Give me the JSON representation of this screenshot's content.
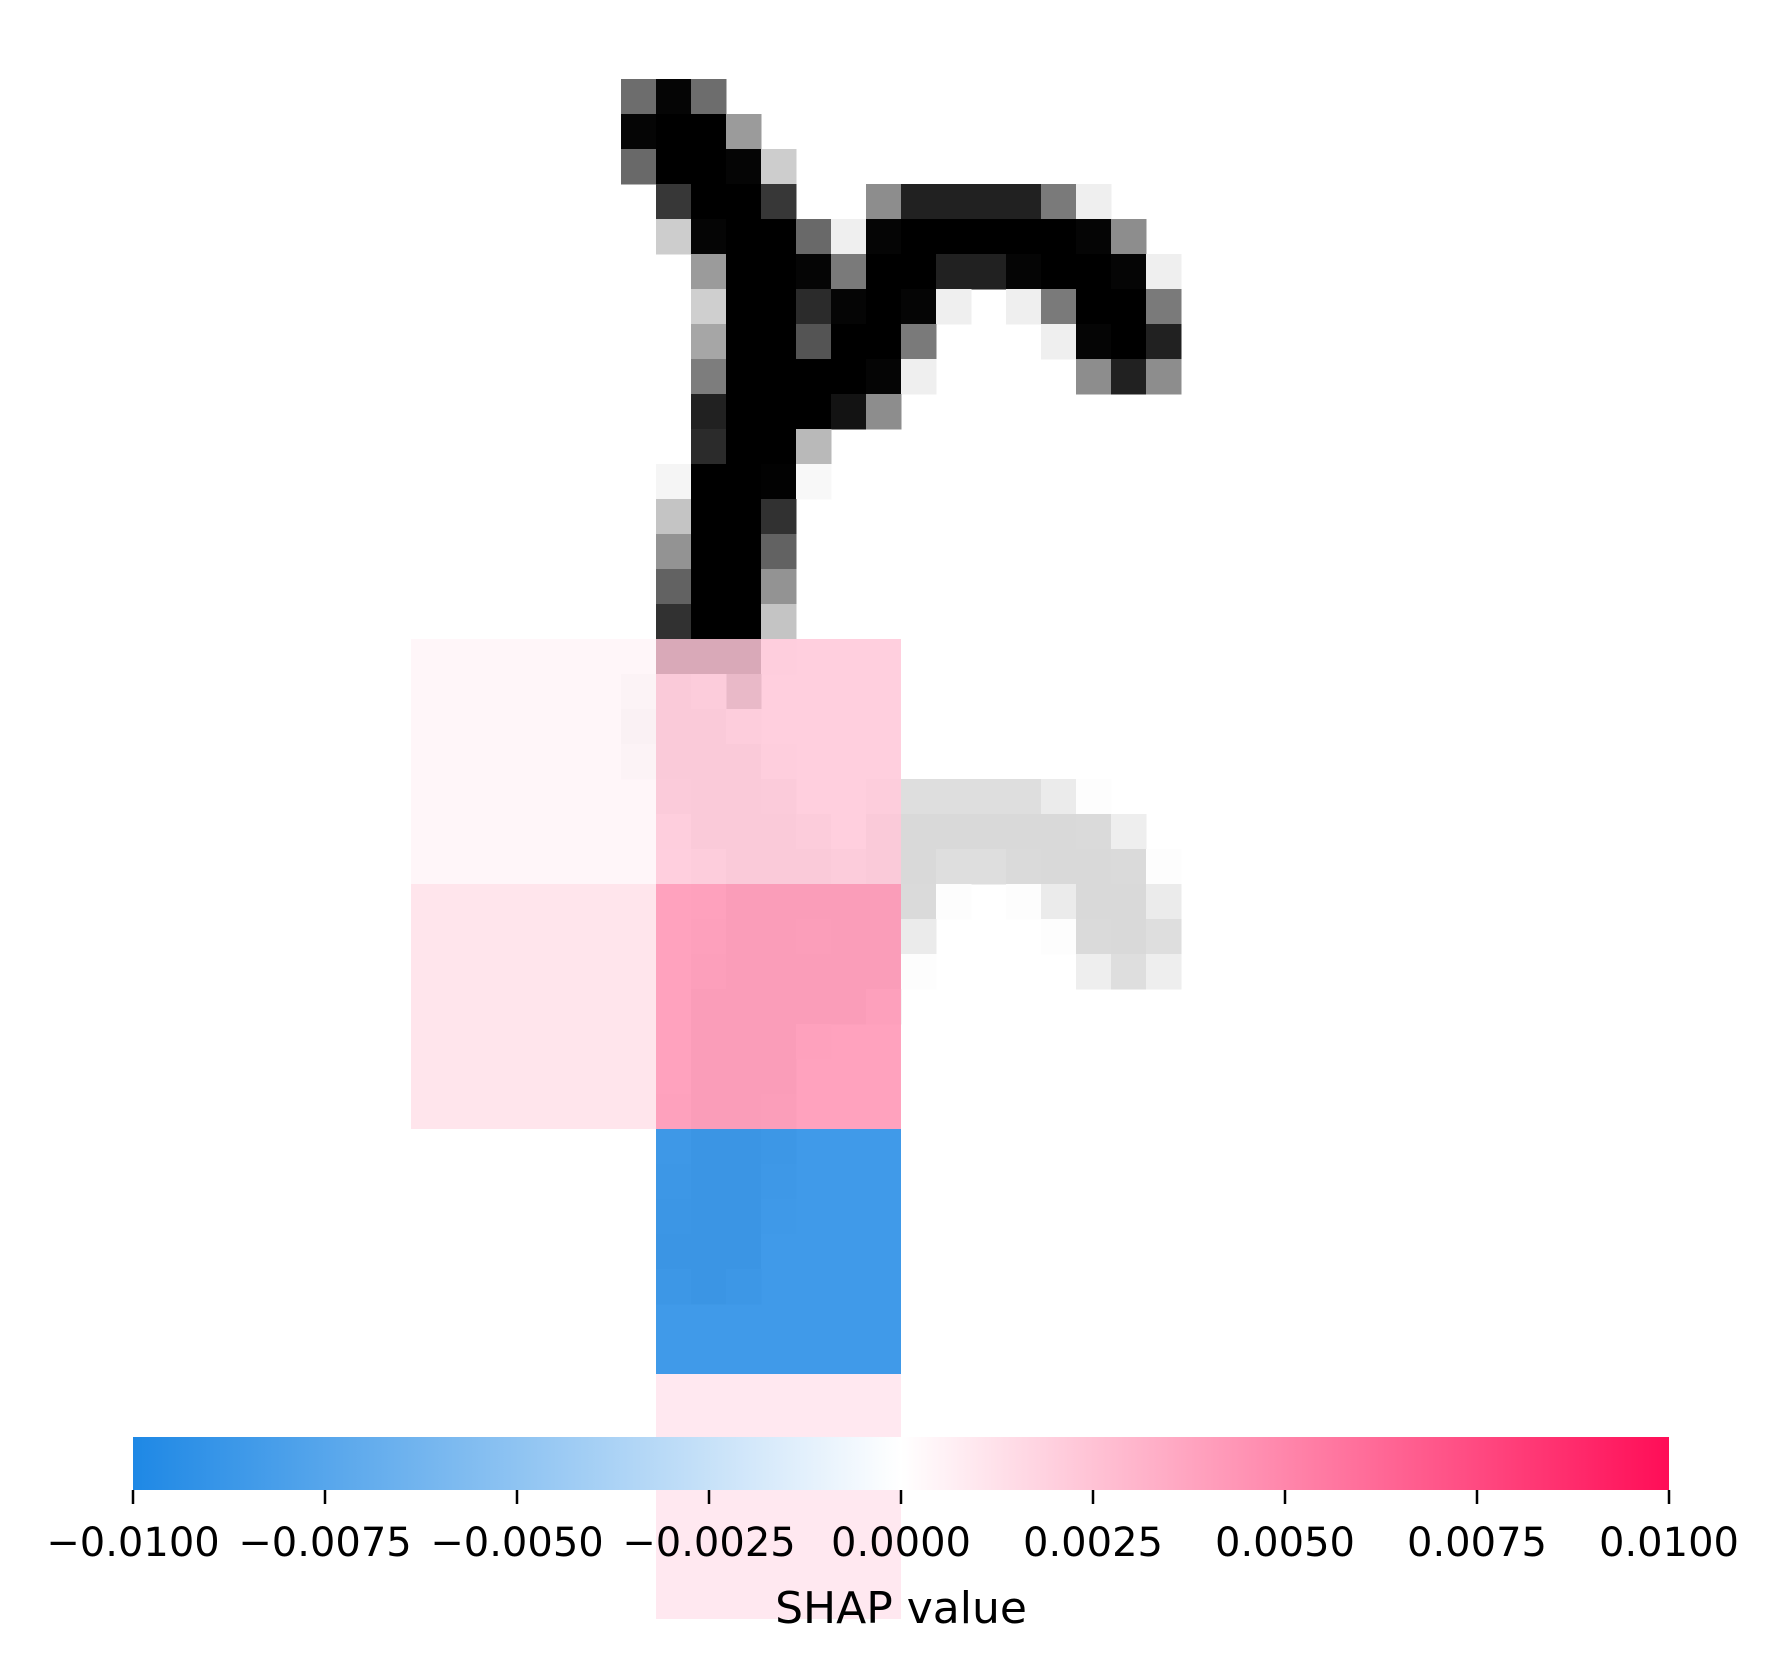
{
  "chart_data": [
    {
      "type": "heatmap",
      "panel": "input-image",
      "colormap": "gray_r",
      "grid_size": [
        28,
        28
      ],
      "note": "input digit rendered as grayscale intensities in [0,1]",
      "strokes": [
        {
          "points": [
            [
              7,
              2
            ],
            [
              10,
              6
            ],
            [
              9,
              12
            ],
            [
              8,
              17
            ]
          ],
          "width": 1.4,
          "intensity": 1.0
        },
        {
          "points": [
            [
              9,
              10
            ],
            [
              12,
              9
            ],
            [
              14,
              5
            ],
            [
              17,
              5
            ],
            [
              19,
              6
            ],
            [
              20,
              8
            ]
          ],
          "width": 1.25,
          "intensity": 1.0
        }
      ]
    },
    {
      "type": "heatmap",
      "panel": "shap-overlay",
      "colormap": "shap_red_blue",
      "grid_size": [
        4,
        4
      ],
      "note": "SHAP values per superpixel block; rows top-to-bottom, columns left-to-right",
      "values": [
        [
          0.0004,
          0.0023,
          0.0,
          0.0
        ],
        [
          0.0013,
          0.0045,
          0.0,
          0.0
        ],
        [
          0.0,
          -0.01,
          0.0,
          0.0
        ],
        [
          0.0,
          0.0011,
          0.0,
          0.0
        ]
      ],
      "background_alpha": 0.15
    }
  ],
  "colorbar": {
    "vmin": -0.01,
    "vmax": 0.01,
    "ticks": [
      -0.01,
      -0.0075,
      -0.005,
      -0.0025,
      0.0,
      0.0025,
      0.005,
      0.0075,
      0.01
    ],
    "tick_labels": [
      "−0.0100",
      "−0.0075",
      "−0.0050",
      "−0.0025",
      "0.0000",
      "0.0025",
      "0.0050",
      "0.0075",
      "0.0100"
    ],
    "label": "SHAP value",
    "colors": {
      "negative": "#1e88e5",
      "neutral": "#ffffff",
      "positive": "#ff0d57"
    }
  }
}
